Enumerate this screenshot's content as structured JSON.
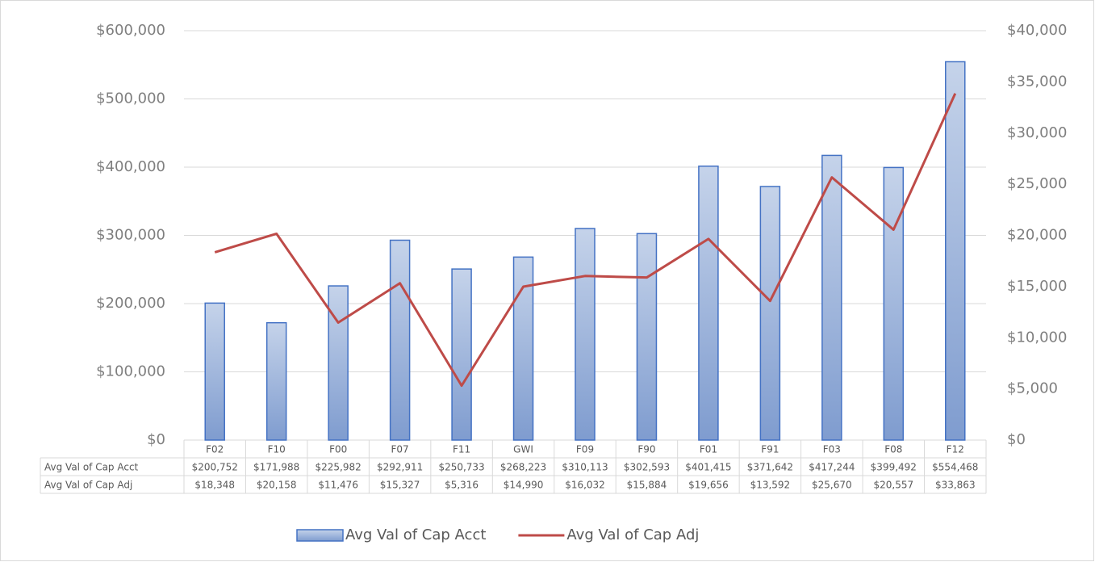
{
  "chart_data": {
    "type": "combo",
    "categories": [
      "F02",
      "F10",
      "F00",
      "F07",
      "F11",
      "GWI",
      "F09",
      "F90",
      "F01",
      "F91",
      "F03",
      "F08",
      "F12"
    ],
    "series": [
      {
        "name": "Avg Val of Cap Acct",
        "type": "bar",
        "color": "#4472c4",
        "values": [
          200752,
          171988,
          225982,
          292911,
          250733,
          268223,
          310113,
          302593,
          401415,
          371642,
          417244,
          399492,
          554468
        ],
        "value_labels": [
          "$200,752",
          "$171,988",
          "$225,982",
          "$292,911",
          "$250,733",
          "$268,223",
          "$310,113",
          "$302,593",
          "$401,415",
          "$371,642",
          "$417,244",
          "$399,492",
          "$554,468"
        ]
      },
      {
        "name": "Avg Val of Cap Adj",
        "type": "line",
        "axis": "y2",
        "color": "#be4b48",
        "values": [
          18348,
          20158,
          11476,
          15327,
          5316,
          14990,
          16032,
          15884,
          19656,
          13592,
          25670,
          20557,
          33863
        ],
        "value_labels": [
          "$18,348",
          "$20,158",
          "$11,476",
          "$15,327",
          "$5,316",
          "$14,990",
          "$16,032",
          "$15,884",
          "$19,656",
          "$13,592",
          "$25,670",
          "$20,557",
          "$33,863"
        ]
      }
    ],
    "ylim": [
      0,
      600000
    ],
    "yticks": [
      {
        "value": 0,
        "label": "$0"
      },
      {
        "value": 100000,
        "label": "$100,000"
      },
      {
        "value": 200000,
        "label": "$200,000"
      },
      {
        "value": 300000,
        "label": "$300,000"
      },
      {
        "value": 400000,
        "label": "$400,000"
      },
      {
        "value": 500000,
        "label": "$500,000"
      },
      {
        "value": 600000,
        "label": "$600,000"
      }
    ],
    "y2lim": [
      0,
      40000
    ],
    "y2ticks": [
      {
        "value": 0,
        "label": "$0"
      },
      {
        "value": 5000,
        "label": "$5,000"
      },
      {
        "value": 10000,
        "label": "$10,000"
      },
      {
        "value": 15000,
        "label": "$15,000"
      },
      {
        "value": 20000,
        "label": "$20,000"
      },
      {
        "value": 25000,
        "label": "$25,000"
      },
      {
        "value": 30000,
        "label": "$30,000"
      },
      {
        "value": 35000,
        "label": "$35,000"
      },
      {
        "value": 40000,
        "label": "$40,000"
      }
    ],
    "grid": true,
    "legend": "bottom",
    "data_table": true
  }
}
